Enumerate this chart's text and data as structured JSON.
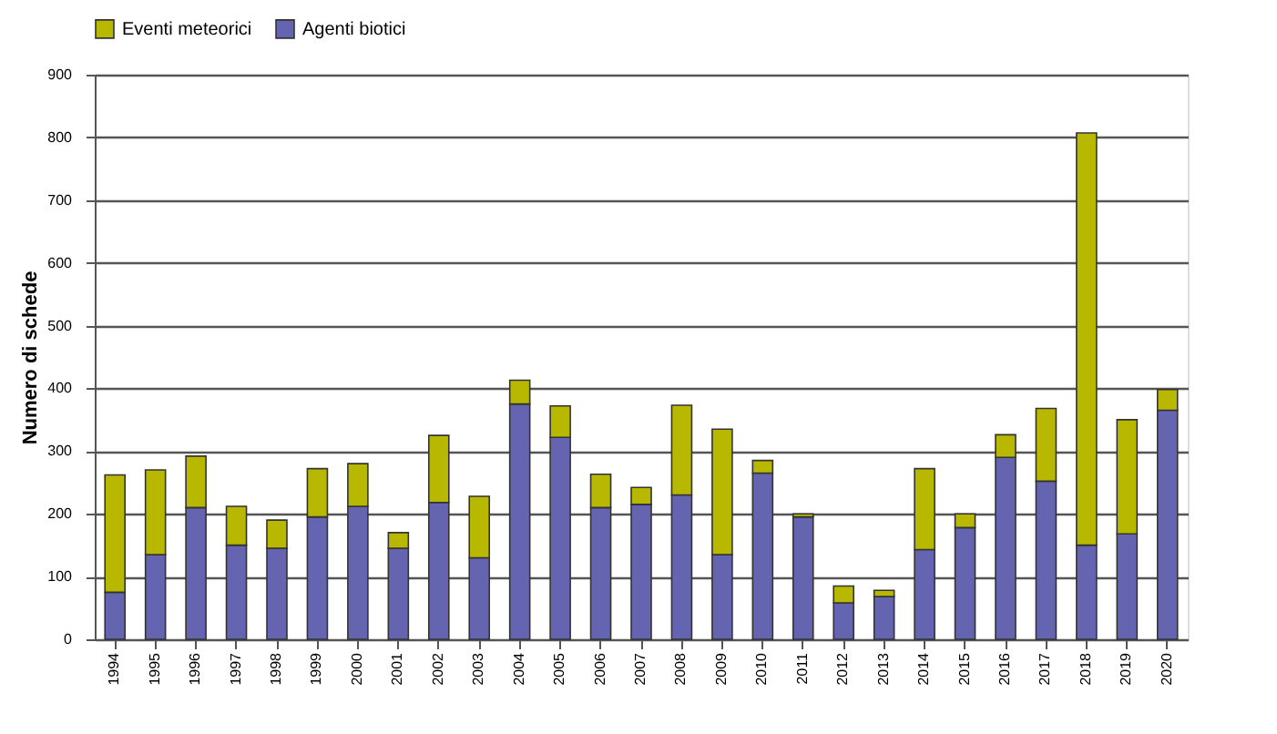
{
  "chart_data": {
    "type": "bar",
    "stacked": true,
    "ylabel": "Numero di schede",
    "categories": [
      "1994",
      "1995",
      "1996",
      "1997",
      "1998",
      "1999",
      "2000",
      "2001",
      "2002",
      "2003",
      "2004",
      "2005",
      "2006",
      "2007",
      "2008",
      "2009",
      "2010",
      "2011",
      "2012",
      "2013",
      "2014",
      "2015",
      "2016",
      "2017",
      "2018",
      "2019",
      "2020"
    ],
    "series": [
      {
        "name": "Agenti biotici",
        "color": "#6464b0",
        "values": [
          75,
          135,
          210,
          150,
          145,
          195,
          212,
          145,
          218,
          130,
          375,
          322,
          210,
          215,
          230,
          135,
          265,
          195,
          58,
          68,
          143,
          178,
          290,
          252,
          150,
          168,
          365
        ]
      },
      {
        "name": "Eventi meteorici",
        "color": "#b8b800",
        "values": [
          187,
          135,
          82,
          62,
          45,
          77,
          68,
          25,
          107,
          98,
          38,
          50,
          53,
          27,
          143,
          200,
          20,
          5,
          27,
          10,
          129,
          22,
          36,
          116,
          657,
          182,
          33
        ]
      }
    ],
    "ylim": [
      0,
      900
    ],
    "yticks": [
      0,
      100,
      200,
      300,
      400,
      500,
      600,
      700,
      800,
      900
    ],
    "grid": "y",
    "legend": "top"
  }
}
